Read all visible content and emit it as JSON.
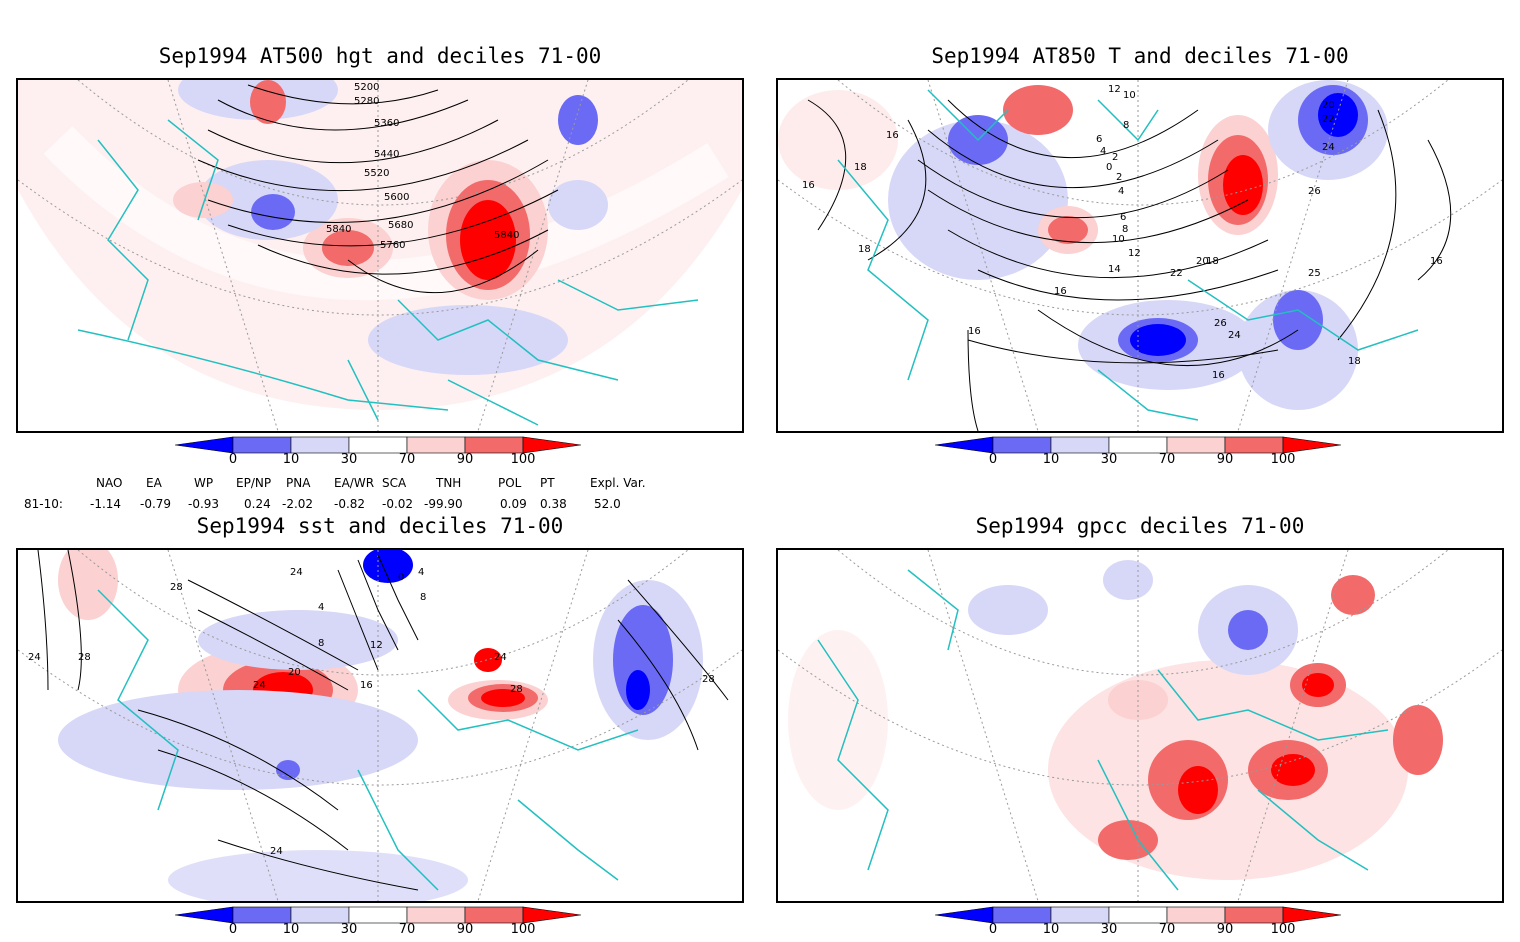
{
  "panels": [
    {
      "title": "Sep1994 AT500 hgt and deciles 71-00",
      "contour_labels": [
        "5200",
        "5280",
        "5360",
        "5440",
        "5520",
        "5600",
        "5680",
        "5760",
        "5840",
        "5840"
      ]
    },
    {
      "title": "Sep1994 AT850 T and deciles 71-00",
      "contour_labels": [
        "12",
        "10",
        "8",
        "6",
        "4",
        "2",
        "0",
        "2",
        "4",
        "6",
        "8",
        "10",
        "12",
        "14",
        "16",
        "18",
        "18",
        "16",
        "16",
        "16",
        "18",
        "20",
        "22",
        "24",
        "26",
        "26",
        "24",
        "22",
        "20",
        "16",
        "18",
        "16",
        "25"
      ]
    },
    {
      "title": "Sep1994 sst and deciles 71-00",
      "contour_labels": [
        "24",
        "28",
        "24",
        "28",
        "12",
        "16",
        "20",
        "24",
        "8",
        "4",
        "0",
        "4",
        "8",
        "24",
        "28",
        "28",
        "24"
      ]
    },
    {
      "title": "Sep1994 gpcc deciles 71-00",
      "contour_labels": []
    }
  ],
  "colorbar": {
    "ticks": [
      "0",
      "10",
      "30",
      "70",
      "90",
      "100"
    ],
    "colors": [
      "#0000ff",
      "#6a6af5",
      "#d7d7f7",
      "#ffffff",
      "#fbd1d1",
      "#f26a6a",
      "#ff0000"
    ]
  },
  "indices": {
    "row_label": "81-10:",
    "headers": [
      "NAO",
      "EA",
      "WP",
      "EP/NP",
      "PNA",
      "EA/WR",
      "SCA",
      "TNH",
      "POL",
      "PT",
      "Expl. Var."
    ],
    "values": [
      "-1.14",
      "-0.79",
      "-0.93",
      "0.24",
      "-2.02",
      "-0.82",
      "-0.02",
      "-99.90",
      "0.09",
      "0.38",
      "52.0"
    ]
  },
  "style": {
    "coast_color": "#22c0c0",
    "grid_color": "#9a9a9a",
    "contour_color": "#000000"
  }
}
